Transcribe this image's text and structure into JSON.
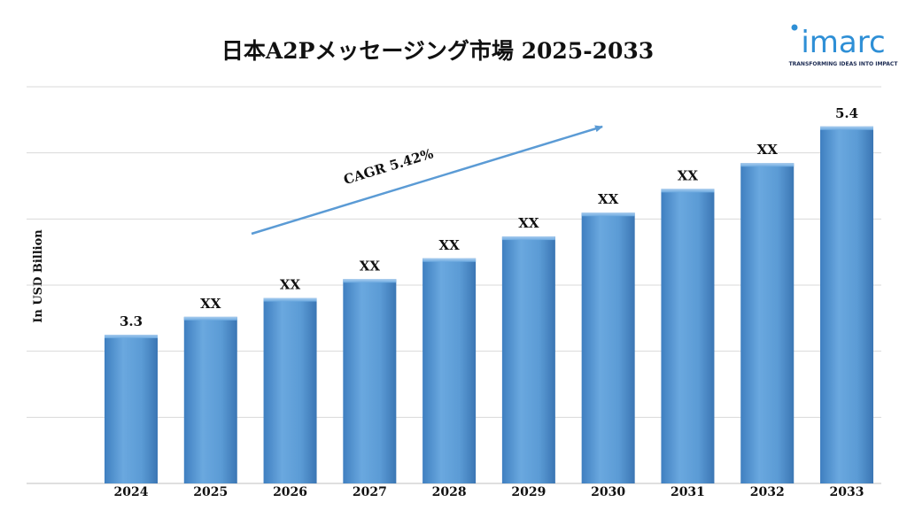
{
  "chart_data": {
    "type": "bar",
    "title": "日本A2Pメッセージング市場 2025-2033",
    "ylabel": "In USD Billion",
    "xlabel": "",
    "categories": [
      "2024",
      "2025",
      "2026",
      "2027",
      "2028",
      "2029",
      "2030",
      "2031",
      "2032",
      "2033"
    ],
    "values": [
      3.3,
      3.48,
      3.67,
      3.86,
      4.07,
      4.29,
      4.53,
      4.77,
      5.03,
      5.4
    ],
    "value_labels": [
      "3.3",
      "XX",
      "XX",
      "XX",
      "XX",
      "XX",
      "XX",
      "XX",
      "XX",
      "5.4"
    ],
    "ylim": [
      1.8,
      5.8
    ],
    "grid": true,
    "bar_color": "#5b9bd5",
    "annotation": {
      "text": "CAGR 5.42%",
      "arrow_color": "#5b9bd5"
    }
  },
  "logo": {
    "name": "imarc",
    "tagline": "TRANSFORMING IDEAS INTO IMPACT",
    "color": "#2e8fd6"
  }
}
